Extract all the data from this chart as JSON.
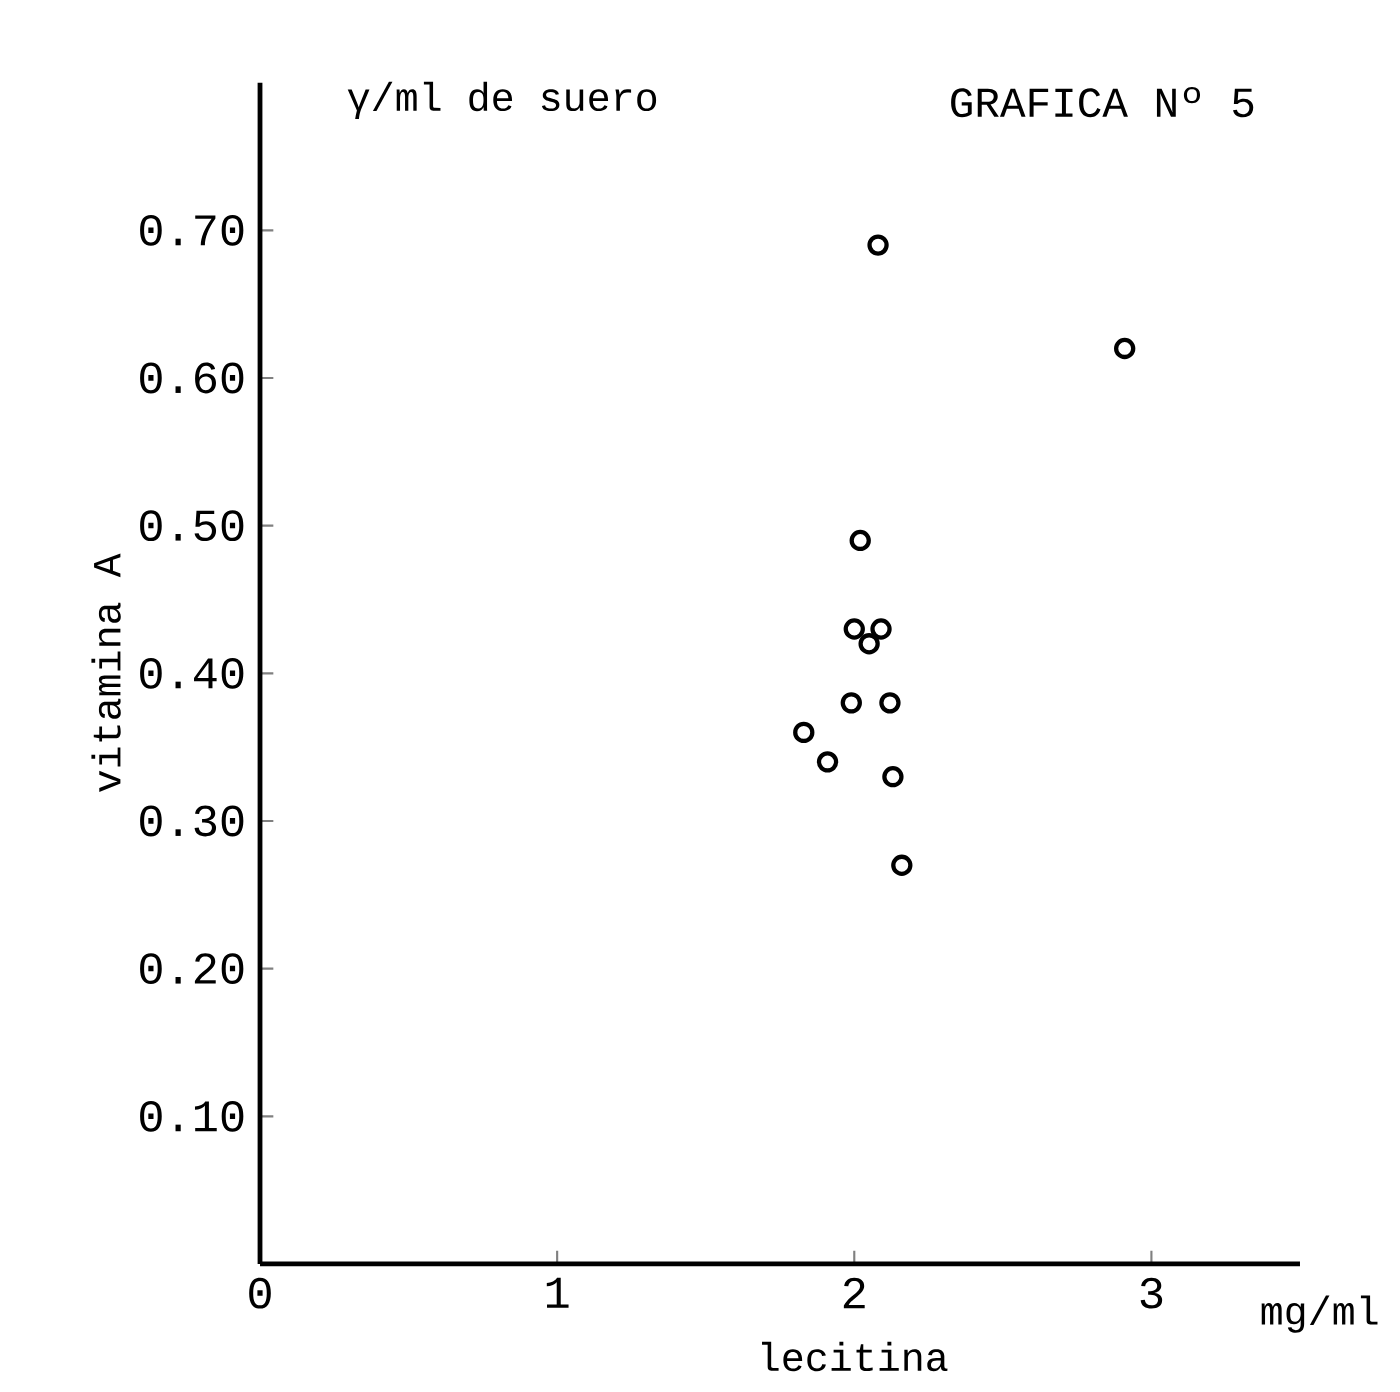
{
  "chart_data": {
    "type": "scatter",
    "title": "GRAFICA Nº 5",
    "xlabel": "lecitina",
    "ylabel": "vitamina A",
    "annotations": [
      "γ/ml de suero",
      "mg/ml"
    ],
    "x": [
      2.08,
      2.91,
      2.02,
      2.0,
      2.09,
      2.05,
      1.99,
      2.12,
      1.83,
      1.91,
      2.13,
      2.16
    ],
    "values": [
      0.69,
      0.62,
      0.49,
      0.43,
      0.43,
      0.42,
      0.38,
      0.38,
      0.36,
      0.34,
      0.33,
      0.27
    ],
    "color": "#000000",
    "marker": "circle",
    "xlim": [
      0,
      3.5
    ],
    "ylim": [
      0,
      0.8
    ],
    "xticks": [
      0,
      1,
      2,
      3
    ],
    "yticks": [
      {
        "value": 0.1,
        "label": "0.10"
      },
      {
        "value": 0.2,
        "label": "0.20"
      },
      {
        "value": 0.3,
        "label": "0.30"
      },
      {
        "value": 0.4,
        "label": "0.40"
      },
      {
        "value": 0.5,
        "label": "0.50"
      },
      {
        "value": 0.6,
        "label": "0.60"
      },
      {
        "value": 0.7,
        "label": "0.70"
      }
    ]
  }
}
